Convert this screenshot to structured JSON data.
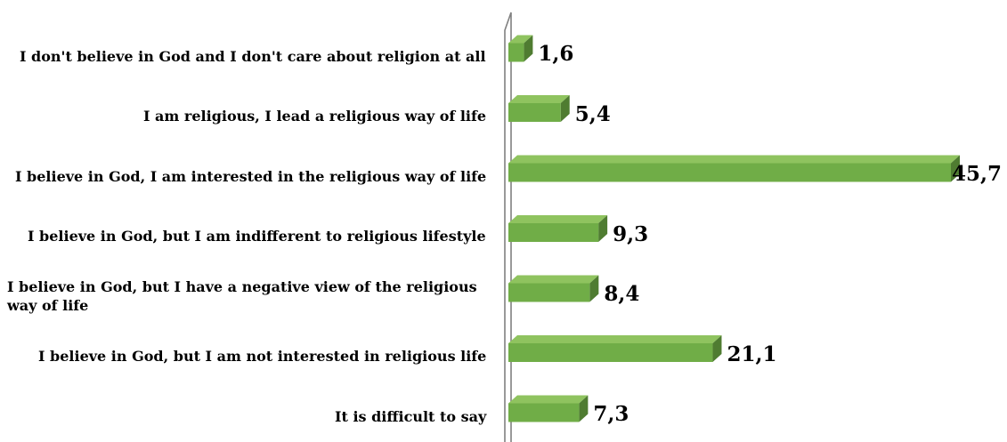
{
  "chart_data": {
    "type": "bar",
    "orientation": "horizontal",
    "categories": [
      "I don't believe in God and I don't care about religion at all",
      "I am religious, I lead a religious way of life",
      "I believe in God, I am interested in the religious way of life",
      "I believe in God, but I am indifferent to religious lifestyle",
      "I believe in God, but I have a negative view of the religious way of life",
      "I believe in God, but I am not interested in religious life",
      "It is difficult to say"
    ],
    "values": [
      1.6,
      5.4,
      45.7,
      9.3,
      8.4,
      21.1,
      7.3
    ],
    "value_labels": [
      "1,6",
      "5,4",
      "45,7",
      "9,3",
      "8,4",
      "21,1",
      "7,3"
    ],
    "title": "",
    "xlabel": "",
    "ylabel": "",
    "xlim": [
      0,
      45.7
    ],
    "grid": false,
    "legend": "none",
    "bar_style": "3d",
    "colors": {
      "bar_front": "#70ad47",
      "bar_top": "#8fc35f",
      "bar_side": "#4f7c31",
      "wall": "#808080",
      "text": "#000000"
    }
  }
}
